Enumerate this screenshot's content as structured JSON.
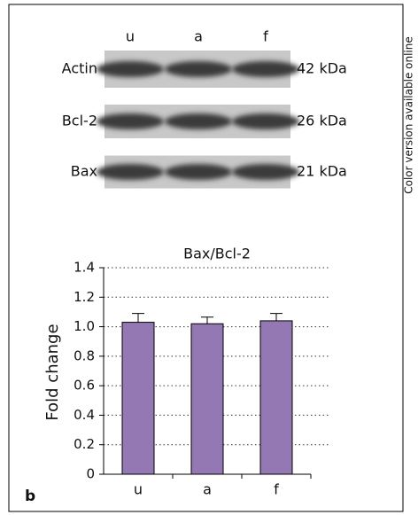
{
  "side_note": "Color version available online",
  "panel_label": "b",
  "blot": {
    "lanes": [
      "u",
      "a",
      "f"
    ],
    "proteins": [
      {
        "name": "Actin",
        "size": "42 kDa"
      },
      {
        "name": "Bcl-2",
        "size": "26 kDa"
      },
      {
        "name": "Bax",
        "size": "21 kDa"
      }
    ]
  },
  "chart_data": {
    "type": "bar",
    "title": "Bax/Bcl-2",
    "y_label": "Fold change",
    "categories": [
      "u",
      "a",
      "f"
    ],
    "values": [
      1.03,
      1.02,
      1.04
    ],
    "errors": [
      0.06,
      0.045,
      0.05
    ],
    "color": "#9478b4",
    "ylim": [
      0,
      1.4
    ],
    "yticks": [
      0,
      0.2,
      0.4,
      0.6,
      0.8,
      {
        "value": 1,
        "label": "1.0"
      },
      1.2,
      1.4
    ],
    "grid": true
  }
}
